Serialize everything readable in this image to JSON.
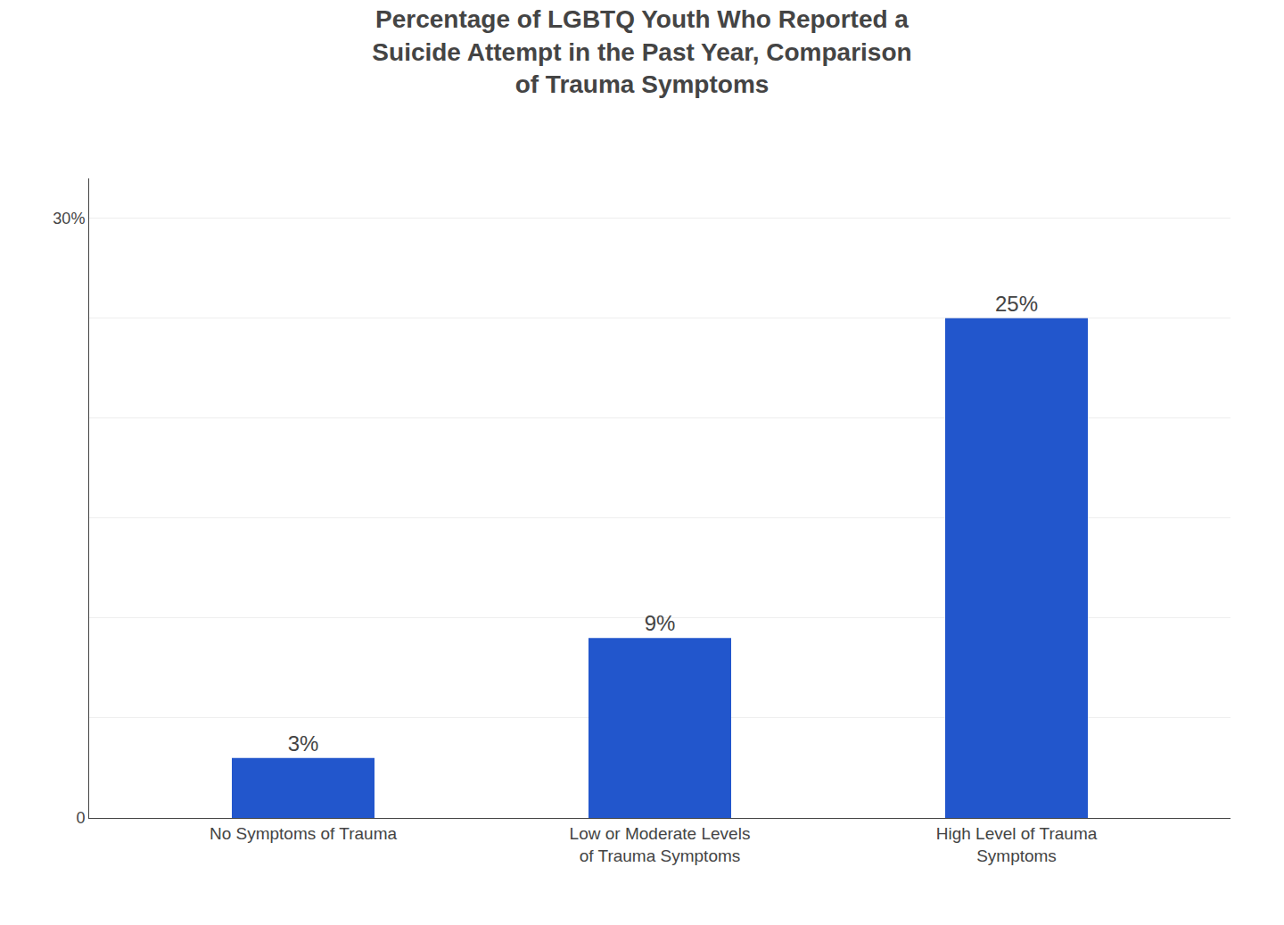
{
  "chart_data": {
    "type": "bar",
    "title": "Percentage of LGBTQ Youth Who Reported a\nSuicide Attempt in the Past Year, Comparison\nof Trauma Symptoms",
    "categories": [
      "No Symptoms of Trauma",
      "Low or Moderate Levels\nof Trauma Symptoms",
      "High Level of Trauma\nSymptoms"
    ],
    "values": [
      3,
      9,
      25
    ],
    "value_labels": [
      "3%",
      "9%",
      "25%"
    ],
    "data_labels": true,
    "color": "#2256CC",
    "ylim": [
      0,
      32
    ],
    "yticks": [
      0,
      {
        "value": 5,
        "label": null
      },
      {
        "value": 10,
        "label": null
      },
      {
        "value": 15,
        "label": null
      },
      {
        "value": 20,
        "label": null
      },
      {
        "value": 25,
        "label": null
      },
      {
        "value": 30,
        "label": "30%"
      }
    ],
    "grid": true
  }
}
